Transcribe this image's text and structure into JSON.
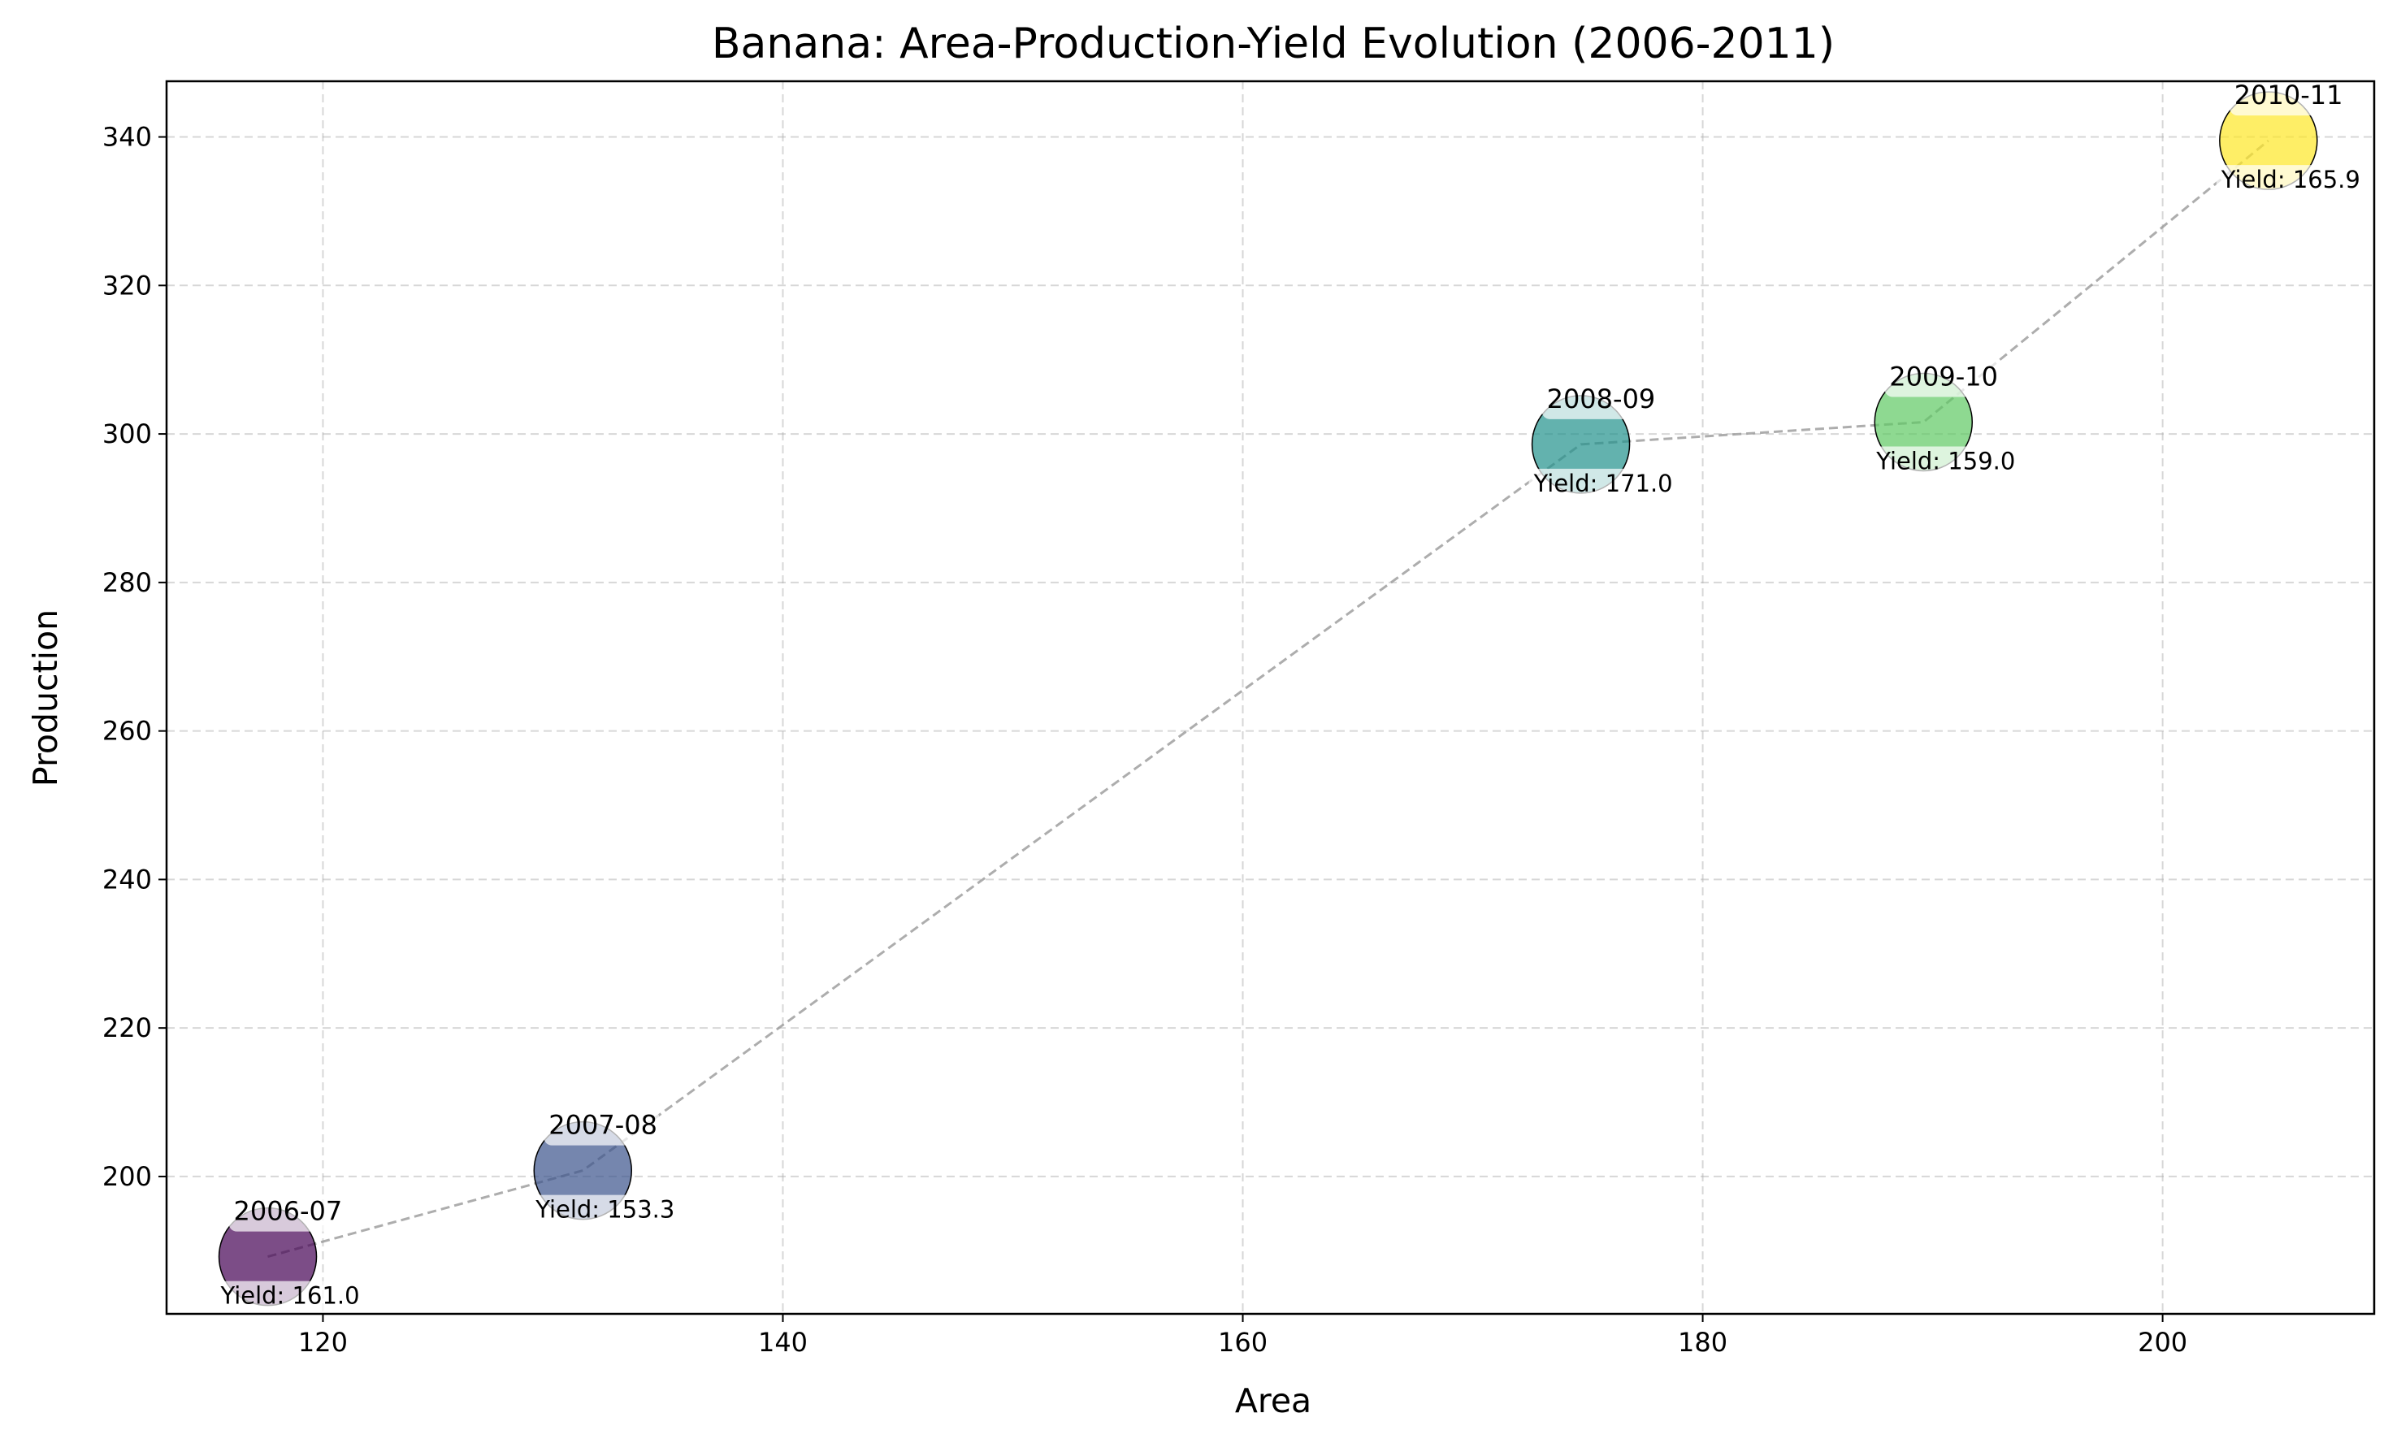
{
  "chart_data": {
    "type": "scatter",
    "title": "Banana: Area-Production-Yield Evolution (2006-2011)",
    "xlabel": "Area",
    "ylabel": "Production",
    "xlim": [
      113.2,
      209.2
    ],
    "ylim": [
      181.5,
      347.5
    ],
    "xticks": [
      120,
      140,
      160,
      180,
      200
    ],
    "yticks": [
      200,
      220,
      240,
      260,
      280,
      300,
      320,
      340
    ],
    "grid": true,
    "connector": "dashed",
    "points": [
      {
        "label": "2006-07",
        "x": 117.6,
        "y": 189.2,
        "yield_text": "Yield: 161.0",
        "color": "#440154"
      },
      {
        "label": "2007-08",
        "x": 131.3,
        "y": 200.8,
        "yield_text": "Yield: 153.3",
        "color": "#3b528b"
      },
      {
        "label": "2008-09",
        "x": 174.7,
        "y": 298.6,
        "yield_text": "Yield: 171.0",
        "color": "#21918c"
      },
      {
        "label": "2009-10",
        "x": 189.6,
        "y": 301.6,
        "yield_text": "Yield: 159.0",
        "color": "#5ec962"
      },
      {
        "label": "2010-11",
        "x": 204.6,
        "y": 339.5,
        "yield_text": "Yield: 165.9",
        "color": "#fde725"
      }
    ]
  }
}
